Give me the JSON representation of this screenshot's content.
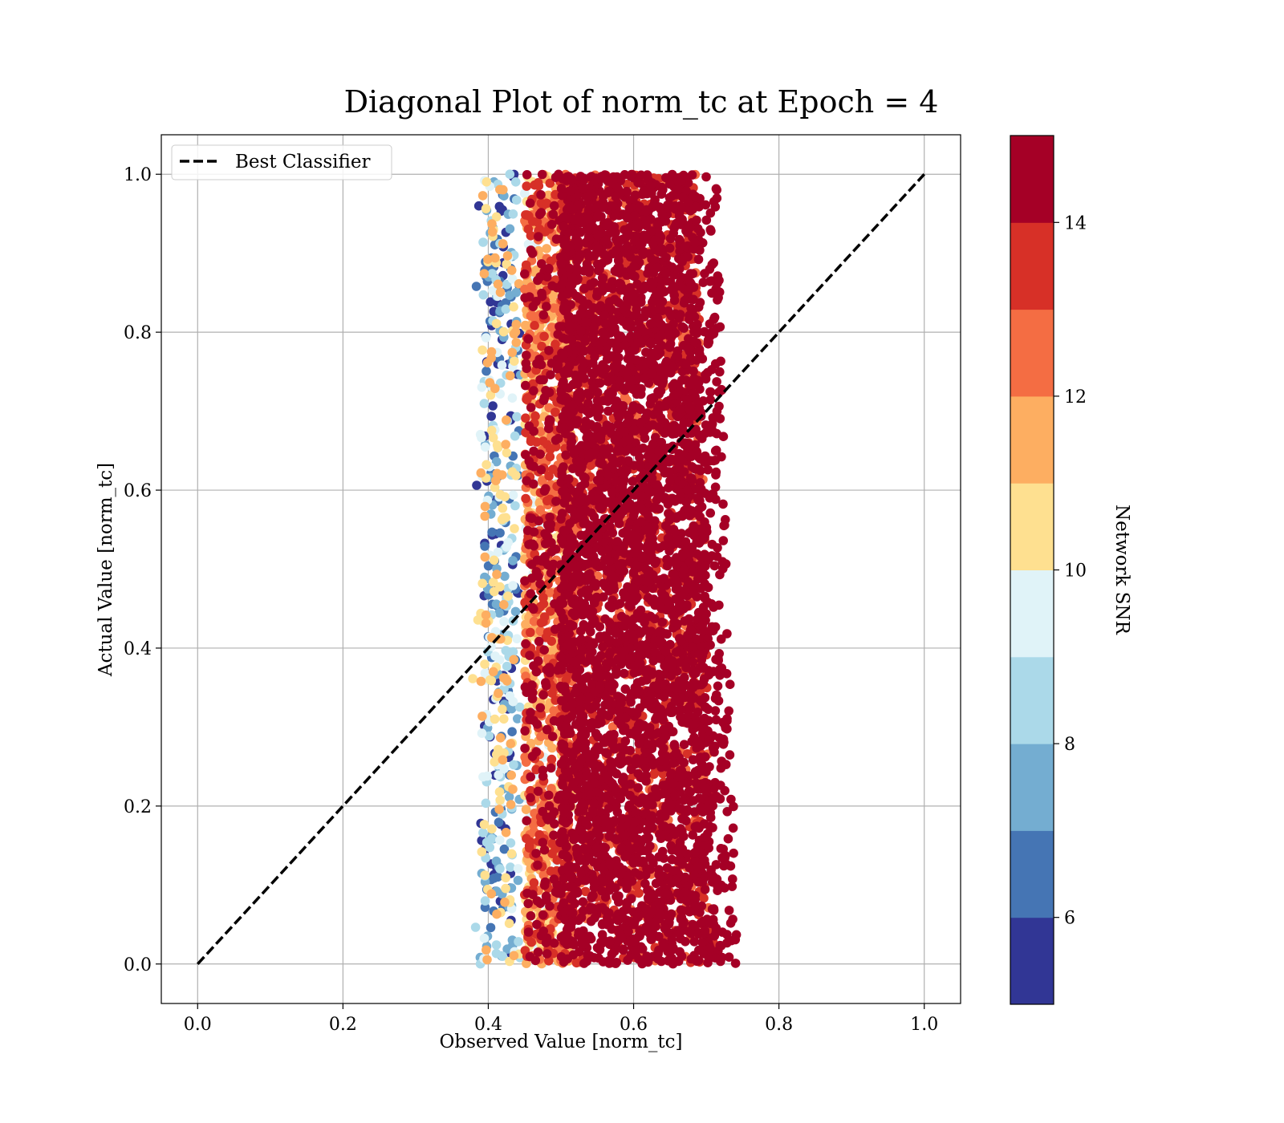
{
  "chart_data": {
    "type": "scatter",
    "title": "Diagonal Plot of norm_tc at Epoch = 4",
    "xlabel": "Observed Value [norm_tc]",
    "ylabel": "Actual Value [norm_tc]",
    "xlim": [
      -0.05,
      1.05
    ],
    "ylim": [
      -0.05,
      1.05
    ],
    "xticks": [
      "0.0",
      "0.2",
      "0.4",
      "0.6",
      "0.8",
      "1.0"
    ],
    "yticks": [
      "0.0",
      "0.2",
      "0.4",
      "0.6",
      "0.8",
      "1.0"
    ],
    "xtick_values": [
      0,
      0.2,
      0.4,
      0.6,
      0.8,
      1.0
    ],
    "ytick_values": [
      0,
      0.2,
      0.4,
      0.6,
      0.8,
      1.0
    ],
    "grid": true,
    "legend": {
      "placement": "top-left",
      "entries": [
        "Best Classifier"
      ]
    },
    "reference_line": {
      "name": "Best Classifier",
      "style": "dashed",
      "color": "#000000",
      "x": [
        0,
        1
      ],
      "y": [
        0,
        1
      ]
    },
    "point_cloud": {
      "observed_range": [
        0.37,
        0.74
      ],
      "actual_range": [
        0.0,
        1.0
      ],
      "dense_core_observed_range": [
        0.5,
        0.7
      ],
      "color_encodes": "Network SNR",
      "note_colors": "high SNR (dark red) dominates the core; low SNR (blue) points scatter on the left edge near observed 0.38-0.45"
    },
    "colorbar": {
      "label": "Network SNR",
      "range": [
        5,
        15
      ],
      "ticks": [
        "6",
        "8",
        "10",
        "12",
        "14"
      ],
      "tick_values": [
        6,
        8,
        10,
        12,
        14
      ],
      "colors": [
        "#313695",
        "#4575b4",
        "#74add1",
        "#abd9e9",
        "#e0f3f8",
        "#fee090",
        "#fdae61",
        "#f46d43",
        "#d73027",
        "#a50026"
      ],
      "bins": [
        5,
        6,
        7,
        8,
        9,
        10,
        11,
        12,
        13,
        14,
        15
      ]
    }
  }
}
